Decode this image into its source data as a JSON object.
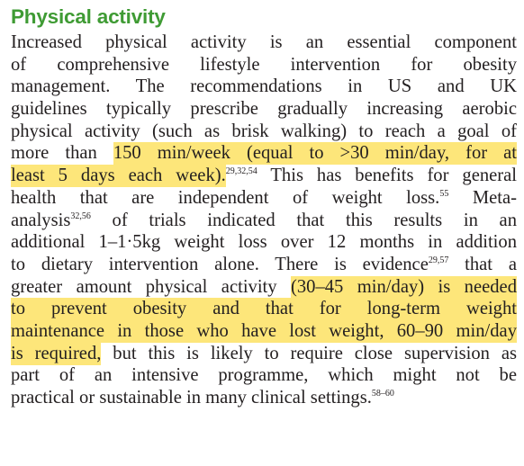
{
  "section": {
    "title": "Physical activity",
    "highlight_color": "#fde67a",
    "title_color": "#3f9b34"
  },
  "lines": [
    {
      "segments": [
        {
          "text": "Increased physical activity is an essential component"
        }
      ]
    },
    {
      "segments": [
        {
          "text": "of comprehensive lifestyle intervention for obesity"
        }
      ]
    },
    {
      "segments": [
        {
          "text": "management. The recommendations in US and UK"
        }
      ]
    },
    {
      "segments": [
        {
          "text": "guidelines typically prescribe gradually increasing aerobic"
        }
      ]
    },
    {
      "segments": [
        {
          "text": "physical activity (such as brisk walking) to reach a goal of"
        }
      ]
    },
    {
      "segments": [
        {
          "text": "more than "
        },
        {
          "text": "150 min/week (equal to >30 min/day, for at",
          "highlight": true
        }
      ]
    },
    {
      "segments": [
        {
          "text": "least 5 days each week)",
          "highlight": true
        },
        {
          "text": ".",
          "highlight": true
        },
        {
          "text": "29,32,54",
          "sup": true
        },
        {
          "text": " This has benefits for general"
        }
      ]
    },
    {
      "segments": [
        {
          "text": "health that are independent of weight loss."
        },
        {
          "text": "55",
          "sup": true
        },
        {
          "text": " Meta-"
        }
      ]
    },
    {
      "segments": [
        {
          "text": "analysis"
        },
        {
          "text": "32,56",
          "sup": true
        },
        {
          "text": " of trials indicated that this results in an"
        }
      ]
    },
    {
      "segments": [
        {
          "text": "additional 1–1·5kg weight loss over 12 months in addition"
        }
      ]
    },
    {
      "segments": [
        {
          "text": "to dietary intervention alone. There is evidence"
        },
        {
          "text": "29,57",
          "sup": true
        },
        {
          "text": " that a"
        }
      ]
    },
    {
      "segments": [
        {
          "text": "greater amount physical activity "
        },
        {
          "text": "(30–45 min/day) is needed",
          "highlight": true
        }
      ]
    },
    {
      "segments": [
        {
          "text": "to prevent obesity and that for long-term weight",
          "highlight": true
        }
      ]
    },
    {
      "segments": [
        {
          "text": "maintenance in those who have lost weight, 60–90 min/day",
          "highlight": true
        }
      ]
    },
    {
      "segments": [
        {
          "text": "is required,",
          "highlight": true
        },
        {
          "text": " but this is likely to require close supervision as"
        }
      ]
    },
    {
      "segments": [
        {
          "text": "part of an intensive programme, which might not be"
        }
      ]
    },
    {
      "segments": [
        {
          "text": "practical or sustainable in many clinical settings."
        },
        {
          "text": "58–60",
          "sup": true
        }
      ]
    }
  ]
}
